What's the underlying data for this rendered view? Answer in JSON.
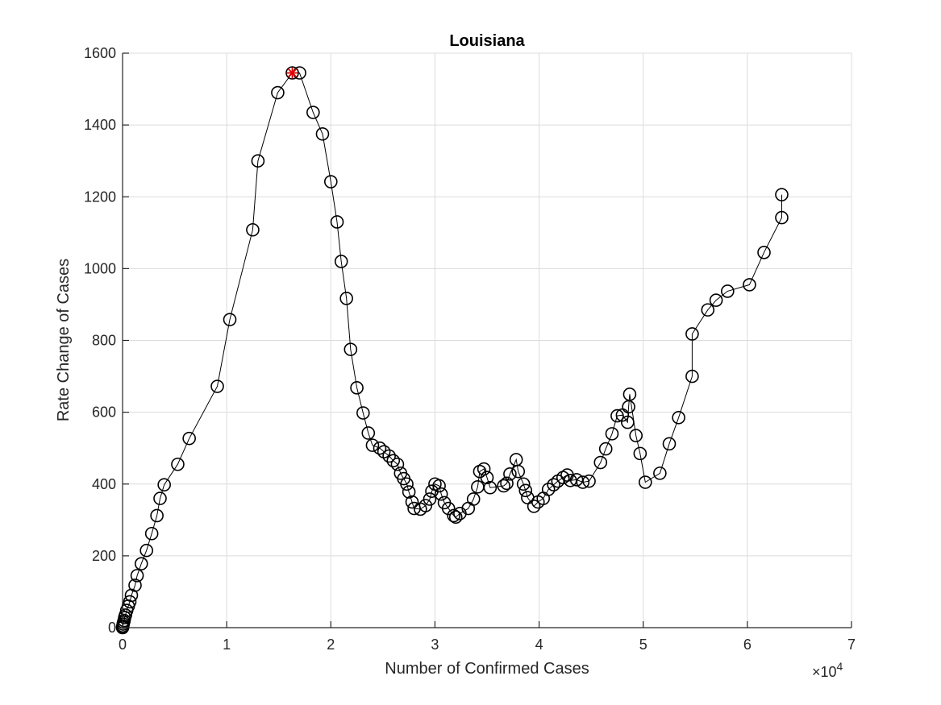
{
  "chart_data": {
    "type": "line",
    "title": "Louisiana",
    "xlabel": "Number of Confirmed Cases",
    "ylabel": "Rate Change of Cases",
    "x_exponent_label": "×10",
    "x_exponent_power": "4",
    "xlim": [
      0,
      70000
    ],
    "ylim": [
      0,
      1600
    ],
    "xticks": [
      0,
      10000,
      20000,
      30000,
      40000,
      50000,
      60000,
      70000
    ],
    "xtick_labels": [
      "0",
      "1",
      "2",
      "3",
      "4",
      "5",
      "6",
      "7"
    ],
    "yticks": [
      0,
      200,
      400,
      600,
      800,
      1000,
      1200,
      1400,
      1600
    ],
    "ytick_labels": [
      "0",
      "200",
      "400",
      "600",
      "800",
      "1000",
      "1200",
      "1400",
      "1600"
    ],
    "grid": true,
    "series_color": "#000000",
    "marker": "circle",
    "highlight_color": "#e00000",
    "highlight_marker": "asterisk",
    "highlight_point": [
      16300,
      1545
    ],
    "series": [
      {
        "points": [
          [
            0,
            0
          ],
          [
            10,
            2
          ],
          [
            30,
            5
          ],
          [
            60,
            10
          ],
          [
            100,
            15
          ],
          [
            150,
            20
          ],
          [
            200,
            28
          ],
          [
            280,
            35
          ],
          [
            400,
            48
          ],
          [
            550,
            60
          ],
          [
            700,
            72
          ],
          [
            850,
            90
          ],
          [
            1200,
            118
          ],
          [
            1400,
            145
          ],
          [
            1800,
            178
          ],
          [
            2300,
            215
          ],
          [
            2800,
            262
          ],
          [
            3300,
            312
          ],
          [
            3600,
            360
          ],
          [
            4000,
            398
          ],
          [
            5300,
            455
          ],
          [
            6400,
            527
          ],
          [
            9100,
            672
          ],
          [
            10300,
            858
          ],
          [
            12500,
            1108
          ],
          [
            13000,
            1300
          ],
          [
            14900,
            1490
          ],
          [
            16300,
            1545
          ],
          [
            17000,
            1545
          ],
          [
            18300,
            1435
          ],
          [
            19200,
            1375
          ],
          [
            20000,
            1242
          ],
          [
            20600,
            1130
          ],
          [
            21000,
            1020
          ],
          [
            21500,
            917
          ],
          [
            21900,
            775
          ],
          [
            22500,
            668
          ],
          [
            23100,
            598
          ],
          [
            23600,
            542
          ],
          [
            24000,
            508
          ],
          [
            24700,
            500
          ],
          [
            25100,
            490
          ],
          [
            25600,
            478
          ],
          [
            26000,
            465
          ],
          [
            26400,
            455
          ],
          [
            26700,
            430
          ],
          [
            27000,
            415
          ],
          [
            27300,
            400
          ],
          [
            27500,
            378
          ],
          [
            27800,
            350
          ],
          [
            28000,
            332
          ],
          [
            28600,
            330
          ],
          [
            29100,
            340
          ],
          [
            29500,
            358
          ],
          [
            29700,
            380
          ],
          [
            30000,
            400
          ],
          [
            30400,
            395
          ],
          [
            30600,
            372
          ],
          [
            30900,
            348
          ],
          [
            31300,
            332
          ],
          [
            31800,
            312
          ],
          [
            32000,
            308
          ],
          [
            32400,
            318
          ],
          [
            33200,
            332
          ],
          [
            33700,
            358
          ],
          [
            34100,
            392
          ],
          [
            34300,
            435
          ],
          [
            34700,
            442
          ],
          [
            35000,
            418
          ],
          [
            35300,
            390
          ],
          [
            36600,
            395
          ],
          [
            36900,
            402
          ],
          [
            37200,
            428
          ],
          [
            37800,
            468
          ],
          [
            38000,
            435
          ],
          [
            38500,
            400
          ],
          [
            38700,
            382
          ],
          [
            38900,
            362
          ],
          [
            39500,
            338
          ],
          [
            39900,
            350
          ],
          [
            40400,
            360
          ],
          [
            40900,
            385
          ],
          [
            41400,
            398
          ],
          [
            41800,
            408
          ],
          [
            42300,
            418
          ],
          [
            42700,
            425
          ],
          [
            43000,
            410
          ],
          [
            43600,
            412
          ],
          [
            44200,
            405
          ],
          [
            44800,
            408
          ],
          [
            45900,
            460
          ],
          [
            46400,
            498
          ],
          [
            47000,
            540
          ],
          [
            47500,
            590
          ],
          [
            48000,
            592
          ],
          [
            48500,
            572
          ],
          [
            48600,
            615
          ],
          [
            48700,
            650
          ],
          [
            49300,
            535
          ],
          [
            49700,
            485
          ],
          [
            50200,
            405
          ],
          [
            51600,
            430
          ],
          [
            52500,
            512
          ],
          [
            53400,
            585
          ],
          [
            54700,
            700
          ],
          [
            54700,
            818
          ],
          [
            56200,
            885
          ],
          [
            57000,
            912
          ],
          [
            58100,
            937
          ],
          [
            60200,
            955
          ],
          [
            61600,
            1045
          ],
          [
            63300,
            1142
          ],
          [
            63300,
            1206
          ]
        ]
      }
    ]
  }
}
